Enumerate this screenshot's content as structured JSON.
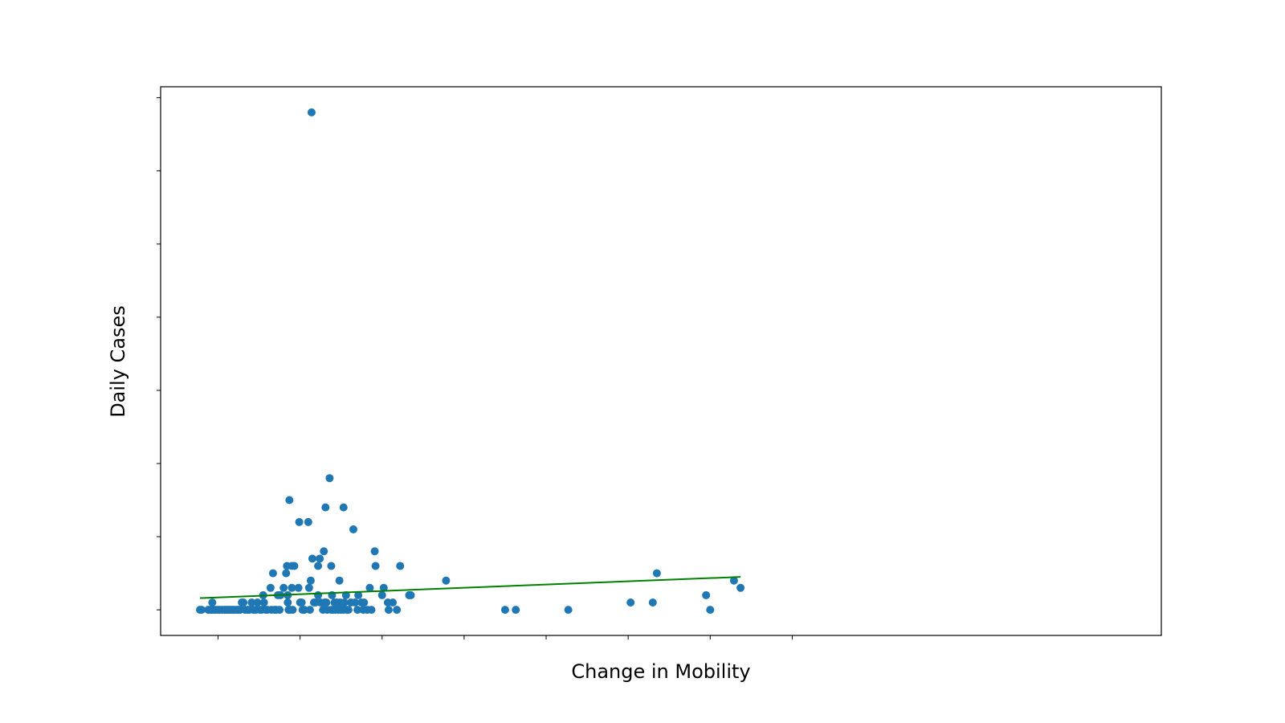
{
  "chart_data": {
    "type": "scatter",
    "title": "",
    "xlabel": "Change in Mobility",
    "ylabel": "Daily Cases",
    "xlim": [
      -1.7,
      10.5
    ],
    "ylim": [
      -3.5,
      71.5
    ],
    "xticks": [
      -1,
      0,
      1,
      2,
      3,
      4,
      5,
      6
    ],
    "yticks": [
      0,
      10,
      20,
      30,
      40,
      50,
      60,
      70
    ],
    "tick_labels_visible": false,
    "grid": false,
    "legend": "none",
    "colors": {
      "points": "#1f77b4",
      "fit_line": "#008000"
    },
    "fit_line": {
      "x": [
        -1.22,
        5.37
      ],
      "y": [
        1.6,
        4.5
      ]
    },
    "points": [
      {
        "x": -1.22,
        "y": 0
      },
      {
        "x": -1.2,
        "y": 0
      },
      {
        "x": -1.12,
        "y": 0
      },
      {
        "x": -1.1,
        "y": 0
      },
      {
        "x": -1.08,
        "y": 0
      },
      {
        "x": -1.07,
        "y": 1
      },
      {
        "x": -1.05,
        "y": 0
      },
      {
        "x": -1.03,
        "y": 0
      },
      {
        "x": -1.0,
        "y": 0
      },
      {
        "x": -0.98,
        "y": 0
      },
      {
        "x": -0.95,
        "y": 0
      },
      {
        "x": -0.92,
        "y": 0
      },
      {
        "x": -0.9,
        "y": 0
      },
      {
        "x": -0.88,
        "y": 0
      },
      {
        "x": -0.86,
        "y": 0
      },
      {
        "x": -0.84,
        "y": 0
      },
      {
        "x": -0.82,
        "y": 0
      },
      {
        "x": -0.8,
        "y": 0
      },
      {
        "x": -0.77,
        "y": 0
      },
      {
        "x": -0.75,
        "y": 0
      },
      {
        "x": -0.73,
        "y": 0
      },
      {
        "x": -0.71,
        "y": 1
      },
      {
        "x": -0.69,
        "y": 1
      },
      {
        "x": -0.67,
        "y": 0
      },
      {
        "x": -0.64,
        "y": 0
      },
      {
        "x": -0.62,
        "y": 0
      },
      {
        "x": -0.59,
        "y": 1
      },
      {
        "x": -0.57,
        "y": 0
      },
      {
        "x": -0.54,
        "y": 0
      },
      {
        "x": -0.52,
        "y": 1
      },
      {
        "x": -0.49,
        "y": 0
      },
      {
        "x": -0.47,
        "y": 0
      },
      {
        "x": -0.45,
        "y": 2
      },
      {
        "x": -0.44,
        "y": 1
      },
      {
        "x": -0.42,
        "y": 0
      },
      {
        "x": -0.4,
        "y": 0
      },
      {
        "x": -0.36,
        "y": 3
      },
      {
        "x": -0.35,
        "y": 0
      },
      {
        "x": -0.33,
        "y": 5
      },
      {
        "x": -0.31,
        "y": 0
      },
      {
        "x": -0.29,
        "y": 0
      },
      {
        "x": -0.27,
        "y": 2
      },
      {
        "x": -0.25,
        "y": 0
      },
      {
        "x": -0.24,
        "y": 2
      },
      {
        "x": -0.2,
        "y": 3
      },
      {
        "x": -0.17,
        "y": 5
      },
      {
        "x": -0.16,
        "y": 6
      },
      {
        "x": -0.15,
        "y": 2
      },
      {
        "x": -0.15,
        "y": 1
      },
      {
        "x": -0.14,
        "y": 0
      },
      {
        "x": -0.13,
        "y": 15
      },
      {
        "x": -0.12,
        "y": 0
      },
      {
        "x": -0.1,
        "y": 3
      },
      {
        "x": -0.1,
        "y": 6
      },
      {
        "x": -0.09,
        "y": 0
      },
      {
        "x": -0.07,
        "y": 6
      },
      {
        "x": -0.02,
        "y": 3
      },
      {
        "x": -0.01,
        "y": 12
      },
      {
        "x": 0.0,
        "y": 1
      },
      {
        "x": 0.02,
        "y": 1
      },
      {
        "x": 0.03,
        "y": 0
      },
      {
        "x": 0.05,
        "y": 0
      },
      {
        "x": 0.1,
        "y": 12
      },
      {
        "x": 0.11,
        "y": 3
      },
      {
        "x": 0.12,
        "y": 0
      },
      {
        "x": 0.13,
        "y": 4
      },
      {
        "x": 0.14,
        "y": 68
      },
      {
        "x": 0.15,
        "y": 7
      },
      {
        "x": 0.17,
        "y": 1
      },
      {
        "x": 0.19,
        "y": 1
      },
      {
        "x": 0.22,
        "y": 2
      },
      {
        "x": 0.22,
        "y": 6
      },
      {
        "x": 0.24,
        "y": 7
      },
      {
        "x": 0.25,
        "y": 1
      },
      {
        "x": 0.28,
        "y": 0
      },
      {
        "x": 0.29,
        "y": 8
      },
      {
        "x": 0.3,
        "y": 1
      },
      {
        "x": 0.31,
        "y": 14
      },
      {
        "x": 0.32,
        "y": 1
      },
      {
        "x": 0.33,
        "y": 0
      },
      {
        "x": 0.36,
        "y": 18
      },
      {
        "x": 0.38,
        "y": 0
      },
      {
        "x": 0.38,
        "y": 6
      },
      {
        "x": 0.39,
        "y": 2
      },
      {
        "x": 0.4,
        "y": 0
      },
      {
        "x": 0.42,
        "y": 1
      },
      {
        "x": 0.43,
        "y": 0
      },
      {
        "x": 0.45,
        "y": 1
      },
      {
        "x": 0.47,
        "y": 0
      },
      {
        "x": 0.48,
        "y": 4
      },
      {
        "x": 0.49,
        "y": 1
      },
      {
        "x": 0.5,
        "y": 0
      },
      {
        "x": 0.53,
        "y": 14
      },
      {
        "x": 0.53,
        "y": 0
      },
      {
        "x": 0.54,
        "y": 1
      },
      {
        "x": 0.56,
        "y": 2
      },
      {
        "x": 0.57,
        "y": 0
      },
      {
        "x": 0.59,
        "y": 0
      },
      {
        "x": 0.62,
        "y": 1
      },
      {
        "x": 0.65,
        "y": 11
      },
      {
        "x": 0.67,
        "y": 1
      },
      {
        "x": 0.7,
        "y": 0
      },
      {
        "x": 0.71,
        "y": 2
      },
      {
        "x": 0.75,
        "y": 1
      },
      {
        "x": 0.77,
        "y": 0
      },
      {
        "x": 0.78,
        "y": 1
      },
      {
        "x": 0.82,
        "y": 0
      },
      {
        "x": 0.85,
        "y": 3
      },
      {
        "x": 0.87,
        "y": 0
      },
      {
        "x": 0.91,
        "y": 8
      },
      {
        "x": 0.92,
        "y": 6
      },
      {
        "x": 1.0,
        "y": 2
      },
      {
        "x": 1.02,
        "y": 3
      },
      {
        "x": 1.07,
        "y": 1
      },
      {
        "x": 1.08,
        "y": 0
      },
      {
        "x": 1.13,
        "y": 1
      },
      {
        "x": 1.18,
        "y": 0
      },
      {
        "x": 1.22,
        "y": 6
      },
      {
        "x": 1.33,
        "y": 2
      },
      {
        "x": 1.35,
        "y": 2
      },
      {
        "x": 1.78,
        "y": 4
      },
      {
        "x": 2.5,
        "y": 0
      },
      {
        "x": 2.63,
        "y": 0
      },
      {
        "x": 3.27,
        "y": 0
      },
      {
        "x": 4.03,
        "y": 1
      },
      {
        "x": 4.3,
        "y": 1
      },
      {
        "x": 4.35,
        "y": 5
      },
      {
        "x": 4.95,
        "y": 2
      },
      {
        "x": 5.0,
        "y": 0
      },
      {
        "x": 5.29,
        "y": 4
      },
      {
        "x": 5.37,
        "y": 3
      }
    ]
  }
}
